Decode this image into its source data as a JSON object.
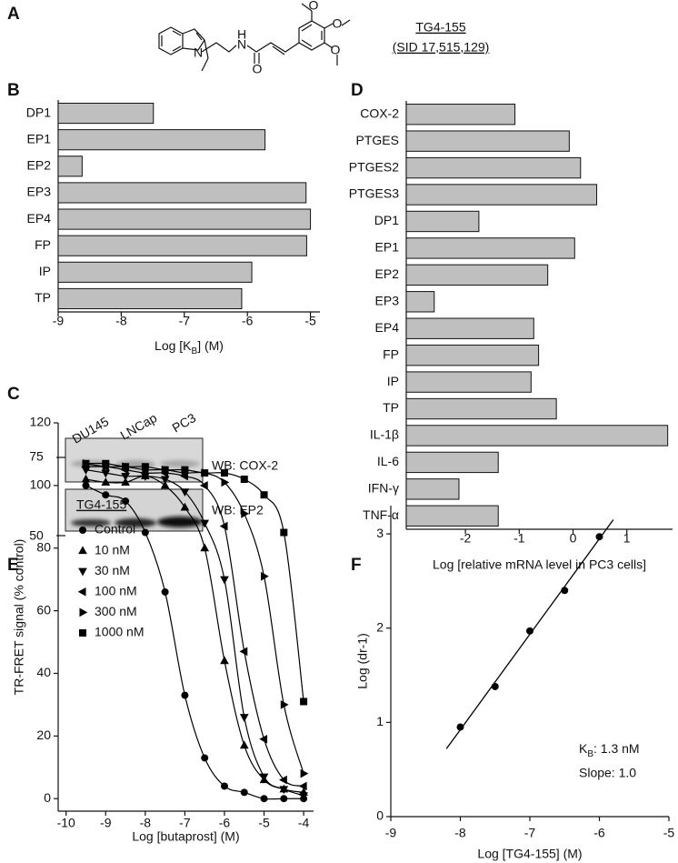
{
  "panel_labels": [
    "A",
    "B",
    "C",
    "D",
    "E",
    "F"
  ],
  "structure": {
    "name": "TG4-155",
    "id": "(SID 17,515,129)",
    "atom_labels": [
      "N",
      "N",
      "H",
      "O",
      "O",
      "O",
      "O"
    ]
  },
  "blot": {
    "lanes": [
      "DU145",
      "LNCap",
      "PC3"
    ],
    "size_markers": [
      "75",
      "50"
    ],
    "probes": [
      "WB: COX-2",
      "WB: EP2"
    ]
  },
  "chart_data": [
    {
      "type": "bar",
      "orientation": "horizontal",
      "color": "#bfbfbf",
      "categories": [
        "DP1",
        "EP1",
        "EP2",
        "EP3",
        "EP4",
        "FP",
        "IP",
        "TP"
      ],
      "values": [
        -7.49,
        -5.72,
        -8.62,
        -5.07,
        -5.0,
        -5.06,
        -5.93,
        -6.09
      ],
      "xlim": [
        -9,
        -4.85
      ],
      "xticks": [
        -9,
        -8,
        -7,
        -6,
        -5
      ],
      "xlabel": [
        "Log [K",
        "B",
        "] (M)"
      ]
    },
    {
      "type": "bar",
      "orientation": "horizontal",
      "color": "#bfbfbf",
      "categories": [
        "COX-2",
        "PTGES",
        "PTGES2",
        "PTGES3",
        "DP1",
        "EP1",
        "EP2",
        "EP3",
        "EP4",
        "FP",
        "IP",
        "TP",
        "IL-1β",
        "IL-6",
        "IFN-γ",
        "TNF-α"
      ],
      "values": [
        -1.08,
        -0.07,
        0.14,
        0.44,
        -1.75,
        0.03,
        -0.47,
        -2.58,
        -0.73,
        -0.64,
        -0.78,
        -0.31,
        1.76,
        -1.39,
        -2.12,
        -1.39
      ],
      "xlim": [
        -3.1,
        1.85
      ],
      "xticks": [
        -2,
        -1,
        0,
        1
      ],
      "xlabel": "Log [relative mRNA level in PC3 cells]"
    },
    {
      "type": "line",
      "color": "#000000",
      "x": [
        -9.5,
        -9,
        -8.5,
        -8,
        -7.5,
        -7,
        -6.5,
        -6,
        -5.5,
        -5,
        -4.5,
        -4
      ],
      "legend_title": "TG4-155",
      "series": [
        {
          "name": "Control",
          "marker": "circle",
          "values": [
            100,
            97,
            95,
            85,
            66,
            33,
            13,
            4,
            2,
            0,
            0,
            0
          ]
        },
        {
          "name": "10 nM",
          "marker": "triangle-up",
          "values": [
            102,
            101,
            101,
            103,
            100,
            93,
            80,
            44,
            17,
            6,
            3,
            2
          ]
        },
        {
          "name": "30 nM",
          "marker": "triangle-down",
          "values": [
            105,
            104,
            103,
            103,
            102,
            98,
            88,
            70,
            26,
            7,
            3,
            1
          ]
        },
        {
          "name": "100 nM",
          "marker": "triangle-left",
          "values": [
            106,
            106,
            105,
            104,
            104,
            103,
            100,
            87,
            47,
            19,
            6,
            4
          ]
        },
        {
          "name": "300 nM",
          "marker": "triangle-right",
          "values": [
            107,
            106,
            106,
            105,
            105,
            104,
            104,
            101,
            91,
            71,
            30,
            8
          ]
        },
        {
          "name": "1000 nM",
          "marker": "square",
          "values": [
            107,
            107,
            106,
            106,
            105,
            105,
            104,
            104,
            102,
            97,
            85,
            31
          ]
        }
      ],
      "xlim": [
        -10.2,
        -3.75
      ],
      "xticks": [
        -10,
        -9,
        -8,
        -7,
        -6,
        -5,
        -4
      ],
      "ylim": [
        -4,
        120
      ],
      "yticks": [
        0,
        20,
        40,
        60,
        80,
        100,
        120
      ],
      "xlabel": "Log [butaprost] (M)",
      "ylabel": "TR-FRET signal (% control)"
    },
    {
      "type": "scatter",
      "color": "#000000",
      "x": [
        -8,
        -7.5,
        -7,
        -6.5,
        -6
      ],
      "values": [
        0.95,
        1.38,
        1.97,
        2.4,
        2.97
      ],
      "fit": {
        "x": [
          -8.2,
          -5.8
        ],
        "y": [
          0.72,
          3.15
        ]
      },
      "xlim": [
        -9,
        -5
      ],
      "xticks": [
        -9,
        -8,
        -7,
        -6,
        -5
      ],
      "ylim": [
        0,
        3.3
      ],
      "yticks": [
        0,
        1,
        2,
        3
      ],
      "xlabel": "Log [TG4-155] (M)",
      "ylabel": "Log (dr-1)",
      "annotations": [
        [
          "K",
          "B",
          ": 1.3 nM"
        ],
        "Slope: 1.0"
      ]
    }
  ]
}
